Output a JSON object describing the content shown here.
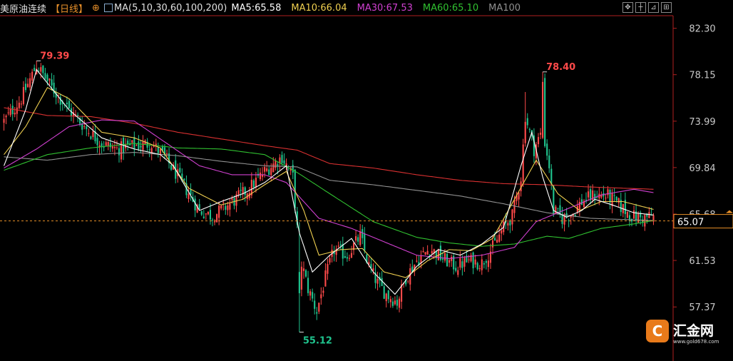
{
  "header": {
    "symbol": "美原油连续",
    "period": "【日线】",
    "add_icon": "circle-plus-icon",
    "ma_icon": "ma-indicator-icon",
    "ma_params": "MA(5,10,30,60,100,200)",
    "ma5": "MA5:65.58",
    "ma10": "MA10:66.04",
    "ma30": "MA30:67.53",
    "ma60": "MA60:65.10",
    "ma100": "MA100"
  },
  "toolbar": [
    "move-icon",
    "crosshair-icon",
    "draw-icon",
    "chart-toggle-icon"
  ],
  "logo": {
    "name": "汇金网",
    "url": "www.gold678.com"
  },
  "colors": {
    "up": "#ff4a4a",
    "down": "#1fc48e",
    "ma5": "#ffffff",
    "ma10": "#f0d050",
    "ma30": "#d040d0",
    "ma60": "#30c030",
    "ma100": "#909090",
    "ma200": "#d83030",
    "last_price_line": "#e89028",
    "axis_text": "#c8c8c8"
  },
  "chart_data": {
    "type": "candlestick",
    "ylim": [
      53.3,
      83.3
    ],
    "y_ticks": [
      "82.30",
      "78.15",
      "73.99",
      "69.84",
      "65.68",
      "61.53",
      "57.37"
    ],
    "last_price": "65.07",
    "high_label": "79.39",
    "high_label_2": "78.40",
    "low_label": "55.12",
    "ma_waypoints": {
      "ma5": [
        [
          0,
          70
        ],
        [
          10,
          75
        ],
        [
          15,
          78.6
        ],
        [
          30,
          75
        ],
        [
          45,
          72.5
        ],
        [
          60,
          71.5
        ],
        [
          72,
          71
        ],
        [
          78,
          70
        ],
        [
          90,
          66
        ],
        [
          100,
          66.8
        ],
        [
          110,
          67.5
        ],
        [
          120,
          68.5
        ],
        [
          130,
          70
        ],
        [
          136,
          64
        ],
        [
          142,
          60.5
        ],
        [
          150,
          62
        ],
        [
          160,
          63.5
        ],
        [
          170,
          60.5
        ],
        [
          180,
          58.5
        ],
        [
          190,
          61
        ],
        [
          200,
          62.5
        ],
        [
          210,
          62
        ],
        [
          220,
          63
        ],
        [
          230,
          64.5
        ],
        [
          238,
          70
        ],
        [
          243,
          73
        ],
        [
          248,
          69
        ],
        [
          253,
          66
        ],
        [
          259,
          65.4
        ],
        [
          266,
          66
        ],
        [
          272,
          67
        ],
        [
          280,
          66.5
        ],
        [
          290,
          65.8
        ],
        [
          299,
          65.6
        ]
      ],
      "ma10": [
        [
          0,
          71
        ],
        [
          10,
          73.5
        ],
        [
          20,
          77
        ],
        [
          30,
          76
        ],
        [
          45,
          73
        ],
        [
          60,
          72.5
        ],
        [
          72,
          71.6
        ],
        [
          85,
          68
        ],
        [
          100,
          66.5
        ],
        [
          110,
          67
        ],
        [
          120,
          68.3
        ],
        [
          130,
          69.5
        ],
        [
          138,
          66
        ],
        [
          145,
          62
        ],
        [
          155,
          62.5
        ],
        [
          165,
          62.6
        ],
        [
          175,
          60.5
        ],
        [
          185,
          60
        ],
        [
          195,
          61.5
        ],
        [
          205,
          62.5
        ],
        [
          215,
          62.4
        ],
        [
          225,
          63.5
        ],
        [
          235,
          67
        ],
        [
          245,
          70.5
        ],
        [
          255,
          67.5
        ],
        [
          265,
          66
        ],
        [
          275,
          66.8
        ],
        [
          285,
          66.8
        ],
        [
          299,
          66.1
        ]
      ],
      "ma30": [
        [
          0,
          69.8
        ],
        [
          15,
          71.5
        ],
        [
          30,
          73.5
        ],
        [
          45,
          74.1
        ],
        [
          60,
          74
        ],
        [
          75,
          72
        ],
        [
          90,
          70
        ],
        [
          105,
          69.2
        ],
        [
          120,
          69.2
        ],
        [
          130,
          68.5
        ],
        [
          145,
          65.3
        ],
        [
          160,
          64.4
        ],
        [
          175,
          63.2
        ],
        [
          190,
          62
        ],
        [
          205,
          61.7
        ],
        [
          220,
          62
        ],
        [
          235,
          62.7
        ],
        [
          245,
          65
        ],
        [
          260,
          66.2
        ],
        [
          275,
          67.4
        ],
        [
          290,
          67.9
        ],
        [
          299,
          67.6
        ]
      ],
      "ma60": [
        [
          0,
          69.6
        ],
        [
          20,
          71
        ],
        [
          40,
          71.6
        ],
        [
          60,
          72
        ],
        [
          80,
          71.6
        ],
        [
          100,
          71.5
        ],
        [
          120,
          71
        ],
        [
          135,
          69.4
        ],
        [
          150,
          67.5
        ],
        [
          170,
          65
        ],
        [
          190,
          63.6
        ],
        [
          205,
          63.1
        ],
        [
          220,
          62.8
        ],
        [
          235,
          63
        ],
        [
          250,
          63.7
        ],
        [
          260,
          63.5
        ],
        [
          275,
          64.4
        ],
        [
          290,
          64.8
        ],
        [
          299,
          65.1
        ]
      ],
      "ma100": [
        [
          0,
          70.8
        ],
        [
          20,
          70.5
        ],
        [
          40,
          71
        ],
        [
          60,
          71.2
        ],
        [
          80,
          70.9
        ],
        [
          100,
          70.4
        ],
        [
          120,
          70
        ],
        [
          135,
          69.9
        ],
        [
          150,
          68.7
        ],
        [
          170,
          68.3
        ],
        [
          190,
          67.8
        ],
        [
          210,
          67.3
        ],
        [
          230,
          66.6
        ],
        [
          250,
          65.8
        ],
        [
          270,
          65.3
        ],
        [
          299,
          65.1
        ]
      ],
      "ma200": [
        [
          0,
          75.2
        ],
        [
          20,
          74.5
        ],
        [
          40,
          74.4
        ],
        [
          60,
          73.8
        ],
        [
          80,
          73
        ],
        [
          100,
          72.4
        ],
        [
          120,
          71.8
        ],
        [
          135,
          71.4
        ],
        [
          150,
          70.2
        ],
        [
          170,
          69.8
        ],
        [
          190,
          69.2
        ],
        [
          210,
          68.7
        ],
        [
          230,
          68.4
        ],
        [
          250,
          68.3
        ],
        [
          270,
          68.1
        ],
        [
          299,
          67.9
        ]
      ]
    },
    "price_waypoints": [
      [
        0,
        74
      ],
      [
        8,
        76
      ],
      [
        15,
        79
      ],
      [
        22,
        77
      ],
      [
        30,
        75
      ],
      [
        38,
        73.3
      ],
      [
        45,
        72
      ],
      [
        52,
        71.5
      ],
      [
        60,
        71.8
      ],
      [
        68,
        72
      ],
      [
        75,
        70.5
      ],
      [
        82,
        68.5
      ],
      [
        90,
        66
      ],
      [
        96,
        65.5
      ],
      [
        104,
        66.6
      ],
      [
        112,
        67.8
      ],
      [
        120,
        69.5
      ],
      [
        128,
        70.8
      ],
      [
        133,
        69
      ],
      [
        136,
        62
      ],
      [
        140,
        59
      ],
      [
        144,
        57
      ],
      [
        148,
        60
      ],
      [
        152,
        62.5
      ],
      [
        158,
        62
      ],
      [
        164,
        63.7
      ],
      [
        168,
        61
      ],
      [
        172,
        59.5
      ],
      [
        176,
        58.5
      ],
      [
        181,
        57.8
      ],
      [
        185,
        60
      ],
      [
        190,
        61.5
      ],
      [
        196,
        62.6
      ],
      [
        202,
        61.7
      ],
      [
        208,
        61
      ],
      [
        214,
        61.5
      ],
      [
        220,
        61.3
      ],
      [
        226,
        63
      ],
      [
        230,
        64.5
      ],
      [
        234,
        65.5
      ],
      [
        238,
        69
      ],
      [
        240,
        74.5
      ],
      [
        244,
        71.5
      ],
      [
        248,
        73.2
      ],
      [
        251,
        70
      ],
      [
        253,
        66
      ],
      [
        257,
        65.3
      ],
      [
        262,
        65.8
      ],
      [
        266,
        66.8
      ],
      [
        272,
        67.4
      ],
      [
        278,
        67.3
      ],
      [
        283,
        66.5
      ],
      [
        289,
        65.5
      ],
      [
        294,
        65.3
      ],
      [
        299,
        65.58
      ]
    ]
  }
}
